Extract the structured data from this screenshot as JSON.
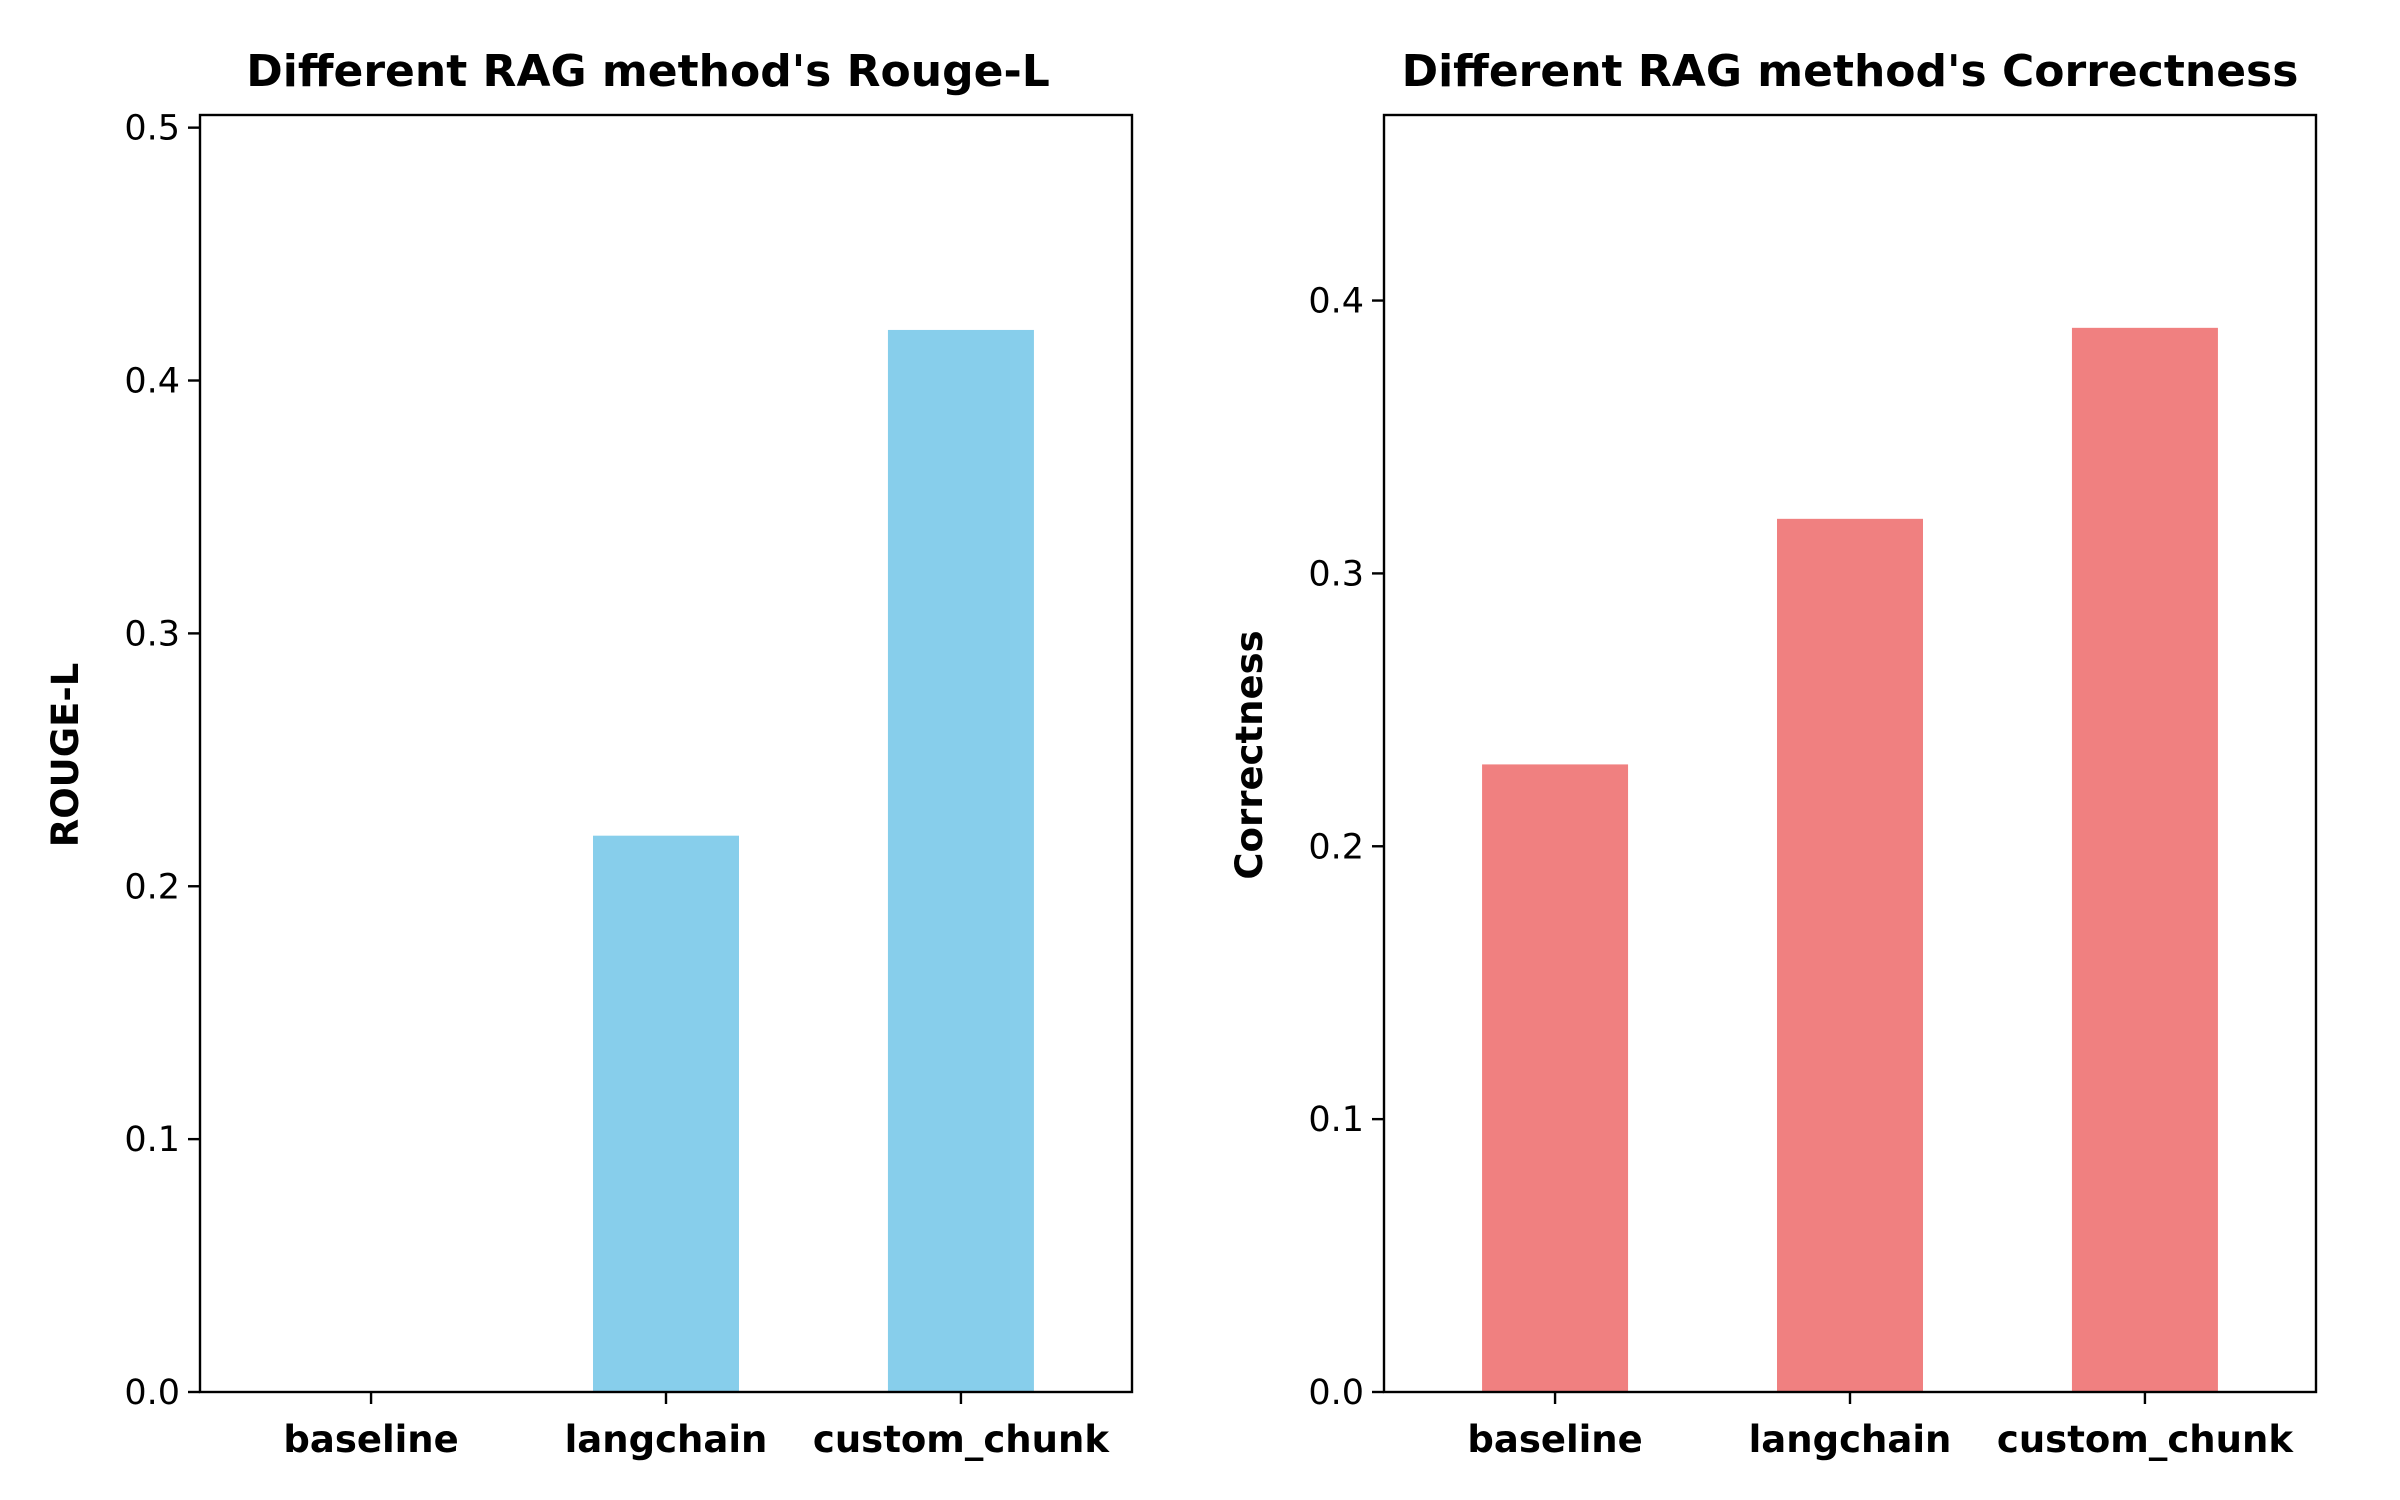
{
  "chart_data": [
    {
      "type": "bar",
      "title": "Different RAG method's Rouge-L",
      "xlabel": "",
      "ylabel": "ROUGE-L",
      "categories": [
        "baseline",
        "langchain",
        "custom_chunk"
      ],
      "values": [
        0.0,
        0.22,
        0.42
      ],
      "ylim": [
        0,
        0.505
      ],
      "yticks": [
        0.0,
        0.1,
        0.2,
        0.3,
        0.4,
        0.5
      ],
      "ytick_labels": [
        "0.0",
        "0.1",
        "0.2",
        "0.3",
        "0.4",
        "0.5"
      ],
      "color": "#87ceeb",
      "grid": false,
      "legend": "none"
    },
    {
      "type": "bar",
      "title": "Different RAG method's Correctness",
      "xlabel": "",
      "ylabel": "Correctness",
      "categories": [
        "baseline",
        "langchain",
        "custom_chunk"
      ],
      "values": [
        0.23,
        0.32,
        0.39
      ],
      "ylim": [
        0,
        0.468
      ],
      "yticks": [
        0.0,
        0.1,
        0.2,
        0.3,
        0.4
      ],
      "ytick_labels": [
        "0.0",
        "0.1",
        "0.2",
        "0.3",
        "0.4"
      ],
      "color": "#f08080",
      "grid": false,
      "legend": "none"
    }
  ]
}
